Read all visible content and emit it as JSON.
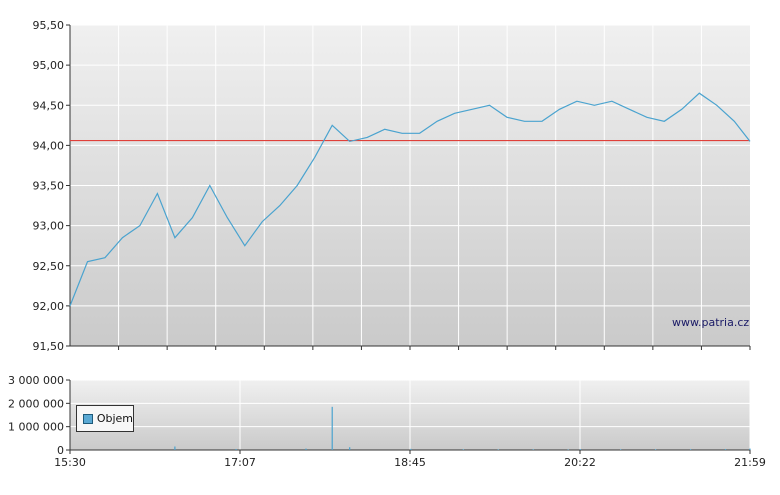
{
  "source_label": "www.patria.cz",
  "colors": {
    "price_line": "#4aa3cf",
    "reference_line": "#e0403a",
    "volume_bar": "#4aa3cf",
    "panel_top": "#f0f0f0",
    "panel_bottom": "#cacaca",
    "grid": "#ffffff",
    "axis": "#333333"
  },
  "chart_data": [
    {
      "type": "line",
      "ylim": [
        91.5,
        95.5
      ],
      "y_ticks": [
        "95,50",
        "95,00",
        "94,50",
        "94,00",
        "93,50",
        "93,00",
        "92,50",
        "92,00",
        "91,50"
      ],
      "y_tick_values": [
        95.5,
        95.0,
        94.5,
        94.0,
        93.5,
        93.0,
        92.5,
        92.0,
        91.5
      ],
      "xlim": [
        "15:30",
        "21:59"
      ],
      "reference_line": 94.06,
      "grid": true,
      "series": [
        {
          "x": [
            "15:30",
            "15:40",
            "15:50",
            "16:00",
            "16:10",
            "16:20",
            "16:30",
            "16:40",
            "16:50",
            "17:00",
            "17:10",
            "17:20",
            "17:30",
            "17:40",
            "17:50",
            "18:00",
            "18:10",
            "18:20",
            "18:30",
            "18:40",
            "18:50",
            "19:00",
            "19:10",
            "19:20",
            "19:30",
            "19:40",
            "19:50",
            "20:00",
            "20:10",
            "20:20",
            "20:30",
            "20:40",
            "20:50",
            "21:00",
            "21:10",
            "21:20",
            "21:30",
            "21:40",
            "21:50",
            "21:59"
          ],
          "values": [
            92.0,
            92.55,
            92.6,
            92.85,
            93.0,
            93.4,
            92.85,
            93.1,
            93.5,
            93.1,
            92.75,
            93.05,
            93.25,
            93.5,
            93.85,
            94.25,
            94.05,
            94.1,
            94.2,
            94.15,
            94.15,
            94.3,
            94.4,
            94.45,
            94.5,
            94.35,
            94.3,
            94.3,
            94.45,
            94.55,
            94.5,
            94.55,
            94.45,
            94.35,
            94.3,
            94.45,
            94.65,
            94.5,
            94.3,
            94.05
          ]
        }
      ]
    },
    {
      "type": "bar",
      "ylim": [
        0,
        3000000
      ],
      "y_ticks": [
        "3 000 000",
        "2 000 000",
        "1 000 000",
        "0"
      ],
      "y_tick_values": [
        3000000,
        2000000,
        1000000,
        0
      ],
      "x_ticks": [
        "15:30",
        "17:07",
        "18:45",
        "20:22",
        "21:59"
      ],
      "legend": "Objem",
      "legend_position": "top-left",
      "series": [
        {
          "name": "Objem",
          "x": [
            "16:30",
            "17:05",
            "17:45",
            "18:00",
            "18:10",
            "18:45",
            "19:15",
            "19:35",
            "19:55",
            "20:15",
            "20:22",
            "20:45",
            "21:05",
            "21:25",
            "21:45",
            "21:59"
          ],
          "values": [
            150000,
            40000,
            60000,
            1850000,
            120000,
            50000,
            30000,
            25000,
            30000,
            20000,
            40000,
            30000,
            30000,
            35000,
            40000,
            60000
          ]
        }
      ]
    }
  ]
}
